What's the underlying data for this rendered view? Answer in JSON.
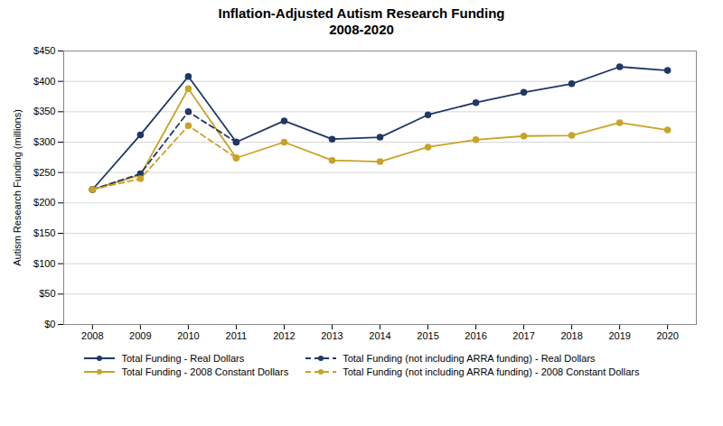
{
  "chart_data": {
    "type": "line",
    "title": "Inflation-Adjusted Autism Research Funding\n2008-2020",
    "ylabel": "Autism Research Funding (millions)",
    "x": [
      2008,
      2009,
      2010,
      2011,
      2012,
      2013,
      2014,
      2015,
      2016,
      2017,
      2018,
      2019,
      2020
    ],
    "series": [
      {
        "name": "Total Funding - Real Dollars",
        "color": "#1F3864",
        "line_style": "solid",
        "marker": "circle",
        "values": [
          222,
          312,
          408,
          300,
          335,
          305,
          308,
          345,
          365,
          382,
          396,
          424,
          418
        ]
      },
      {
        "name": "Total Funding (not including ARRA funding) - Real Dollars",
        "color": "#1F3864",
        "line_style": "dashed",
        "marker": "circle",
        "values": [
          222,
          248,
          350,
          300,
          null,
          null,
          null,
          null,
          null,
          null,
          null,
          null,
          null
        ]
      },
      {
        "name": "Total Funding - 2008 Constant Dollars",
        "color": "#C9A227",
        "line_style": "solid",
        "marker": "circle",
        "values": [
          222,
          246,
          388,
          274,
          300,
          270,
          268,
          292,
          304,
          310,
          311,
          332,
          320
        ]
      },
      {
        "name": "Total Funding (not including ARRA funding) - 2008 Constant Dollars",
        "color": "#C9A227",
        "line_style": "dashed",
        "marker": "circle",
        "values": [
          222,
          240,
          327,
          274,
          null,
          null,
          null,
          null,
          null,
          null,
          null,
          null,
          null
        ]
      }
    ],
    "xlim": [
      2007.4,
      2020.6
    ],
    "xticks": [
      2008,
      2009,
      2010,
      2011,
      2012,
      2013,
      2014,
      2015,
      2016,
      2017,
      2018,
      2019,
      2020
    ],
    "ylim": [
      0,
      450
    ],
    "yticks": [
      {
        "value": 0,
        "label": "$0"
      },
      {
        "value": 50,
        "label": "$50"
      },
      {
        "value": 100,
        "label": "$100"
      },
      {
        "value": 150,
        "label": "$150"
      },
      {
        "value": 200,
        "label": "$200"
      },
      {
        "value": 250,
        "label": "$250"
      },
      {
        "value": 300,
        "label": "$300"
      },
      {
        "value": 350,
        "label": "$350"
      },
      {
        "value": 400,
        "label": "$400"
      },
      {
        "value": 450,
        "label": "$450"
      }
    ],
    "grid": true,
    "legend": "bottom"
  }
}
